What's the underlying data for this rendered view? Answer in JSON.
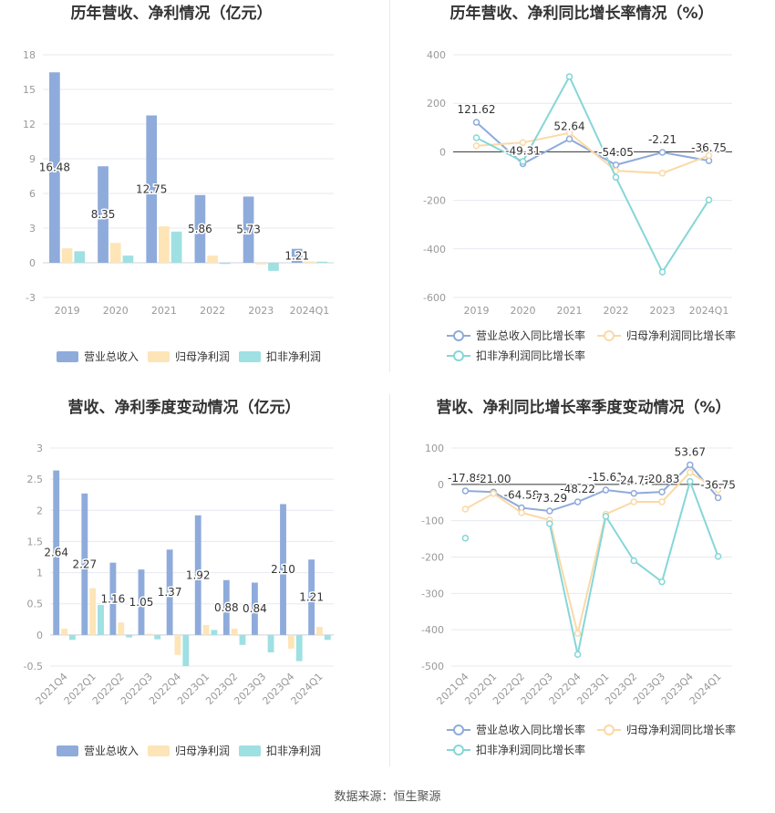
{
  "colors": {
    "revenue": "#8eabdb",
    "net_profit": "#fde5b8",
    "deducted_profit": "#9fe0e2",
    "revenue_line": "#8eabdb",
    "net_profit_line": "#fbd9a6",
    "deducted_line": "#86d6d8",
    "grid": "#e6e9ef",
    "axis_text": "#999999",
    "title": "#333333"
  },
  "footer": {
    "source": "数据来源：恒生聚源"
  },
  "chart_data": [
    {
      "id": "annual_amount",
      "type": "bar",
      "title": "历年营收、净利情况（亿元）",
      "categories": [
        "2019",
        "2020",
        "2021",
        "2022",
        "2023",
        "2024Q1"
      ],
      "ylim": [
        -3,
        18
      ],
      "yticks": [
        -3,
        0,
        3,
        6,
        9,
        12,
        15,
        18
      ],
      "series": [
        {
          "name": "营业总收入",
          "values": [
            16.48,
            8.35,
            12.75,
            5.86,
            5.73,
            1.21
          ],
          "labels": [
            "16.48",
            "8.35",
            "12.75",
            "5.86",
            "5.73",
            "1.21"
          ]
        },
        {
          "name": "归母净利润",
          "values": [
            1.25,
            1.72,
            3.15,
            0.62,
            -0.15,
            0.12
          ]
        },
        {
          "name": "扣非净利润",
          "values": [
            1.0,
            0.62,
            2.7,
            -0.1,
            -0.7,
            0.1
          ]
        }
      ],
      "legend_position": "bottom",
      "grid": true
    },
    {
      "id": "annual_growth",
      "type": "line",
      "title": "历年营收、净利同比增长率情况（%）",
      "categories": [
        "2019",
        "2020",
        "2021",
        "2022",
        "2023",
        "2024Q1"
      ],
      "ylim": [
        -600,
        400
      ],
      "yticks": [
        -600,
        -400,
        -200,
        0,
        200,
        400
      ],
      "series": [
        {
          "name": "营业总收入同比增长率",
          "values": [
            121.62,
            -49.31,
            52.64,
            -54.05,
            -2.21,
            -36.75
          ],
          "labels": [
            "121.62",
            "-49.31",
            "52.64",
            "-54.05",
            "-2.21",
            "-36.75"
          ]
        },
        {
          "name": "归母净利润同比增长率",
          "values": [
            25,
            38,
            78,
            -78,
            -88,
            -15
          ]
        },
        {
          "name": "扣非净利润同比增长率",
          "values": [
            58,
            -40,
            310,
            -105,
            -495,
            -198
          ]
        }
      ],
      "legend_position": "bottom",
      "grid": true
    },
    {
      "id": "quarterly_amount",
      "type": "bar",
      "title": "营收、净利季度变动情况（亿元）",
      "categories": [
        "2021Q4",
        "2022Q1",
        "2022Q2",
        "2022Q3",
        "2022Q4",
        "2023Q1",
        "2023Q2",
        "2023Q3",
        "2023Q4",
        "2024Q1"
      ],
      "ylim": [
        -0.5,
        3
      ],
      "yticks": [
        -0.5,
        0,
        0.5,
        1,
        1.5,
        2,
        2.5,
        3
      ],
      "series": [
        {
          "name": "营业总收入",
          "values": [
            2.64,
            2.27,
            1.16,
            1.05,
            1.37,
            1.92,
            0.88,
            0.84,
            2.1,
            1.21
          ],
          "labels": [
            "2.64",
            "2.27",
            "1.16",
            "1.05",
            "1.37",
            "1.92",
            "0.88",
            "0.84",
            "2.10",
            "1.21"
          ]
        },
        {
          "name": "归母净利润",
          "values": [
            0.1,
            0.75,
            0.2,
            0.02,
            -0.32,
            0.16,
            0.1,
            -0.01,
            -0.22,
            0.13
          ]
        },
        {
          "name": "扣非净利润",
          "values": [
            -0.08,
            0.48,
            -0.04,
            -0.07,
            -0.5,
            0.08,
            -0.16,
            -0.28,
            -0.42,
            -0.08
          ]
        }
      ],
      "legend_position": "bottom",
      "grid": true
    },
    {
      "id": "quarterly_growth",
      "type": "line",
      "title": "营收、净利同比增长率季度变动情况（%）",
      "categories": [
        "2021Q4",
        "2022Q1",
        "2022Q2",
        "2022Q3",
        "2022Q4",
        "2023Q1",
        "2023Q2",
        "2023Q3",
        "2023Q4",
        "2024Q1"
      ],
      "ylim": [
        -500,
        100
      ],
      "yticks": [
        -500,
        -400,
        -300,
        -200,
        -100,
        0,
        100
      ],
      "series": [
        {
          "name": "营业总收入同比增长率",
          "values": [
            -17.86,
            -21.0,
            -64.58,
            -73.29,
            -48.22,
            -15.61,
            -24.72,
            -20.83,
            53.67,
            -36.75
          ],
          "labels": [
            "-17.86",
            "-21.00",
            "-64.58",
            "-73.29",
            "-48.22",
            "-15.61",
            "-24.72",
            "-20.83",
            "53.67",
            "-36.75"
          ]
        },
        {
          "name": "归母净利润同比增长率",
          "values": [
            -68,
            -25,
            -78,
            -98,
            -410,
            -82,
            -48,
            -48,
            33,
            -15
          ]
        },
        {
          "name": "扣非净利润同比增长率",
          "values": [
            -148,
            null,
            null,
            -108,
            -468,
            -88,
            -210,
            -268,
            8,
            -198
          ]
        }
      ],
      "legend_position": "bottom",
      "grid": true
    }
  ]
}
